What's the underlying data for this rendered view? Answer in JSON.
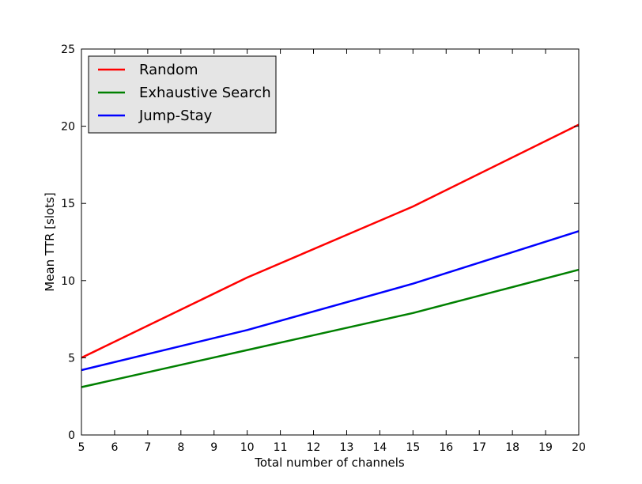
{
  "chart_data": {
    "type": "line",
    "title": "",
    "xlabel": "Total number of channels",
    "ylabel": "Mean TTR [slots]",
    "xlim": [
      5,
      20
    ],
    "ylim": [
      0,
      25
    ],
    "xticks": [
      5,
      6,
      7,
      8,
      9,
      10,
      11,
      12,
      13,
      14,
      15,
      16,
      17,
      18,
      19,
      20
    ],
    "yticks": [
      0,
      5,
      10,
      15,
      20,
      25
    ],
    "grid": false,
    "legend_position": "top-left",
    "series": [
      {
        "name": "Random",
        "color": "#ff0000",
        "x": [
          5,
          10,
          15,
          20
        ],
        "y": [
          5.0,
          10.2,
          14.8,
          20.1
        ]
      },
      {
        "name": "Exhaustive Search",
        "color": "#008000",
        "x": [
          5,
          10,
          15,
          20
        ],
        "y": [
          3.1,
          5.5,
          7.9,
          10.7
        ]
      },
      {
        "name": "Jump-Stay",
        "color": "#0000ff",
        "x": [
          5,
          10,
          15,
          20
        ],
        "y": [
          4.2,
          6.8,
          9.8,
          13.2
        ]
      }
    ]
  }
}
